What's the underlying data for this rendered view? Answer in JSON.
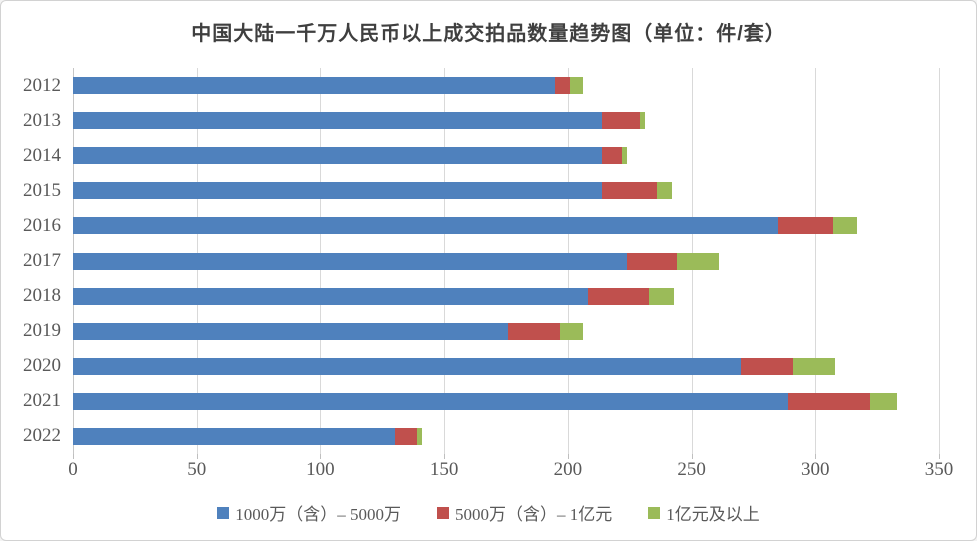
{
  "chart_data": {
    "type": "bar",
    "orientation": "horizontal",
    "stacked": true,
    "title": "中国大陆一千万人民币以上成交拍品数量趋势图（单位：件/套）",
    "categories": [
      "2012",
      "2013",
      "2014",
      "2015",
      "2016",
      "2017",
      "2018",
      "2019",
      "2020",
      "2021",
      "2022"
    ],
    "series": [
      {
        "name": "1000万（含）– 5000万",
        "color": "#4F81BD",
        "values": [
          195,
          214,
          214,
          214,
          285,
          224,
          208,
          176,
          270,
          289,
          130
        ]
      },
      {
        "name": "5000万（含）– 1亿元",
        "color": "#C0504D",
        "values": [
          6,
          15,
          8,
          22,
          22,
          20,
          25,
          21,
          21,
          33,
          9
        ]
      },
      {
        "name": "1亿元及以上",
        "color": "#9BBB59",
        "values": [
          5,
          2,
          2,
          6,
          10,
          17,
          10,
          9,
          17,
          11,
          2
        ]
      }
    ],
    "xlim": [
      0,
      350
    ],
    "xticks": [
      0,
      50,
      100,
      150,
      200,
      250,
      300,
      350
    ],
    "xlabel": "",
    "ylabel": "",
    "grid": true,
    "legend_position": "bottom",
    "styles": {
      "gridline_color": "#D9D9D9",
      "axis_text_color": "#595959",
      "title_color": "#3F3F3F",
      "background": "#FFFFFF"
    }
  }
}
